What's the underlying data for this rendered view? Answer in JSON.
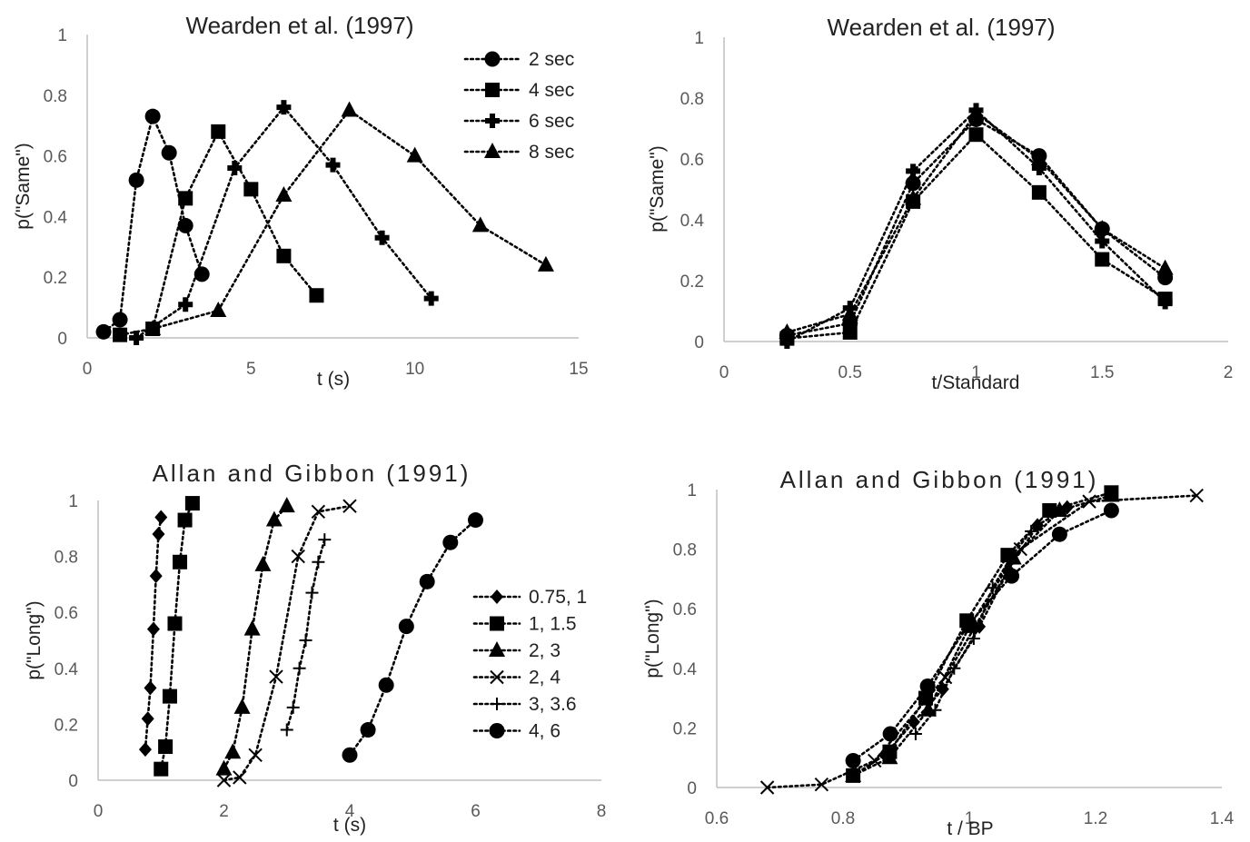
{
  "chart_data": [
    {
      "type": "line",
      "title": "Wearden et al. (1997)",
      "xlabel": "t (s)",
      "ylabel": "p(\"Same\")",
      "xlim": [
        0,
        15
      ],
      "ylim": [
        0,
        1
      ],
      "xticks": [
        "0",
        "5",
        "10",
        "15"
      ],
      "yticks": [
        "0",
        "0.2",
        "0.4",
        "0.6",
        "0.8",
        "1"
      ],
      "grid": false,
      "legend": "top-right",
      "series": [
        {
          "name": "2 sec",
          "marker": "circle",
          "x": [
            0.5,
            1.0,
            1.5,
            2.0,
            2.5,
            3.0,
            3.5
          ],
          "y": [
            0.02,
            0.06,
            0.52,
            0.73,
            0.61,
            0.37,
            0.21
          ]
        },
        {
          "name": "4 sec",
          "marker": "square",
          "x": [
            1.0,
            2.0,
            3.0,
            4.0,
            5.0,
            6.0,
            7.0
          ],
          "y": [
            0.01,
            0.03,
            0.46,
            0.68,
            0.49,
            0.27,
            0.14
          ]
        },
        {
          "name": "6 sec",
          "marker": "cross",
          "x": [
            1.5,
            3.0,
            4.5,
            6.0,
            7.5,
            9.0,
            10.5
          ],
          "y": [
            0.0,
            0.11,
            0.56,
            0.76,
            0.57,
            0.33,
            0.13
          ]
        },
        {
          "name": "8 sec",
          "marker": "triangle",
          "x": [
            2.0,
            4.0,
            6.0,
            8.0,
            10.0,
            12.0,
            14.0
          ],
          "y": [
            0.03,
            0.09,
            0.47,
            0.75,
            0.6,
            0.37,
            0.24
          ]
        }
      ]
    },
    {
      "type": "line",
      "title": "Wearden et al. (1997)",
      "xlabel": "t/Standard",
      "ylabel": "p(\"Same\")",
      "xlim": [
        0,
        2
      ],
      "ylim": [
        0,
        1
      ],
      "xticks": [
        "0",
        "0.5",
        "1",
        "1.5",
        "2"
      ],
      "yticks": [
        "0",
        "0.2",
        "0.4",
        "0.6",
        "0.8",
        "1"
      ],
      "grid": false,
      "series": [
        {
          "marker": "circle",
          "x": [
            0.25,
            0.5,
            0.75,
            1.0,
            1.25,
            1.5,
            1.75
          ],
          "y": [
            0.02,
            0.06,
            0.52,
            0.73,
            0.61,
            0.37,
            0.21
          ]
        },
        {
          "marker": "square",
          "x": [
            0.25,
            0.5,
            0.75,
            1.0,
            1.25,
            1.5,
            1.75
          ],
          "y": [
            0.01,
            0.03,
            0.46,
            0.68,
            0.49,
            0.27,
            0.14
          ]
        },
        {
          "marker": "cross",
          "x": [
            0.25,
            0.5,
            0.75,
            1.0,
            1.25,
            1.5,
            1.75
          ],
          "y": [
            0.0,
            0.11,
            0.56,
            0.76,
            0.57,
            0.33,
            0.13
          ]
        },
        {
          "marker": "triangle",
          "x": [
            0.25,
            0.5,
            0.75,
            1.0,
            1.25,
            1.5,
            1.75
          ],
          "y": [
            0.03,
            0.09,
            0.47,
            0.75,
            0.6,
            0.37,
            0.24
          ]
        }
      ]
    },
    {
      "type": "line",
      "title": "Allan and Gibbon (1991)",
      "xlabel": "t (s)",
      "ylabel": "p(\"Long\")",
      "xlim": [
        0,
        8
      ],
      "ylim": [
        0,
        1
      ],
      "xticks": [
        "0",
        "2",
        "4",
        "6",
        "8"
      ],
      "yticks": [
        "0",
        "0.2",
        "0.4",
        "0.6",
        "0.8",
        "1"
      ],
      "grid": false,
      "legend": "right",
      "series": [
        {
          "name": "0.75, 1",
          "marker": "diamond",
          "x": [
            0.75,
            0.79,
            0.83,
            0.88,
            0.92,
            0.96,
            1.0
          ],
          "y": [
            0.11,
            0.22,
            0.33,
            0.54,
            0.73,
            0.88,
            0.94
          ]
        },
        {
          "name": "1, 1.5",
          "marker": "square",
          "x": [
            1.0,
            1.07,
            1.14,
            1.22,
            1.3,
            1.38,
            1.5
          ],
          "y": [
            0.04,
            0.12,
            0.3,
            0.56,
            0.78,
            0.93,
            0.99
          ]
        },
        {
          "name": "2, 3",
          "marker": "triangle",
          "x": [
            2.0,
            2.14,
            2.29,
            2.45,
            2.62,
            2.8,
            3.0
          ],
          "y": [
            0.04,
            0.1,
            0.26,
            0.54,
            0.77,
            0.93,
            0.98
          ]
        },
        {
          "name": "2, 4",
          "marker": "x",
          "x": [
            2.0,
            2.25,
            2.5,
            2.83,
            3.18,
            3.5,
            4.0
          ],
          "y": [
            0.0,
            0.01,
            0.09,
            0.37,
            0.8,
            0.96,
            0.98
          ]
        },
        {
          "name": "3, 3.6",
          "marker": "plus",
          "x": [
            3.0,
            3.1,
            3.2,
            3.3,
            3.4,
            3.5,
            3.6
          ],
          "y": [
            0.18,
            0.26,
            0.4,
            0.5,
            0.67,
            0.78,
            0.86
          ]
        },
        {
          "name": "4, 6",
          "marker": "circle",
          "x": [
            4.0,
            4.29,
            4.58,
            4.9,
            5.23,
            5.6,
            6.0
          ],
          "y": [
            0.09,
            0.18,
            0.34,
            0.55,
            0.71,
            0.85,
            0.93
          ]
        }
      ]
    },
    {
      "type": "line",
      "title": "Allan and Gibbon (1991)",
      "xlabel": "t / BP",
      "ylabel": "p(\"Long\")",
      "xlim": [
        0.6,
        1.4
      ],
      "ylim": [
        0,
        1
      ],
      "xticks": [
        "0.6",
        "0.8",
        "1",
        "1.2",
        "1.4"
      ],
      "yticks": [
        "0",
        "0.2",
        "0.4",
        "0.6",
        "0.8",
        "1"
      ],
      "grid": false,
      "series": [
        {
          "marker": "diamond",
          "x": [
            0.866,
            0.912,
            0.958,
            1.016,
            1.062,
            1.108,
            1.155
          ],
          "y": [
            0.11,
            0.22,
            0.33,
            0.54,
            0.73,
            0.88,
            0.94
          ]
        },
        {
          "marker": "square",
          "x": [
            0.816,
            0.874,
            0.931,
            0.996,
            1.061,
            1.127,
            1.225
          ],
          "y": [
            0.04,
            0.12,
            0.3,
            0.56,
            0.78,
            0.93,
            0.99
          ]
        },
        {
          "marker": "triangle",
          "x": [
            0.816,
            0.874,
            0.935,
            1.0,
            1.07,
            1.143,
            1.225
          ],
          "y": [
            0.04,
            0.1,
            0.26,
            0.54,
            0.77,
            0.93,
            0.98
          ]
        },
        {
          "marker": "x",
          "x": [
            0.68,
            0.766,
            0.85,
            0.962,
            1.081,
            1.19,
            1.36
          ],
          "y": [
            0.0,
            0.01,
            0.09,
            0.37,
            0.8,
            0.96,
            0.98
          ]
        },
        {
          "marker": "plus",
          "x": [
            0.915,
            0.946,
            0.976,
            1.007,
            1.037,
            1.068,
            1.098
          ],
          "y": [
            0.18,
            0.26,
            0.4,
            0.5,
            0.67,
            0.78,
            0.86
          ]
        },
        {
          "marker": "circle",
          "x": [
            0.816,
            0.875,
            0.934,
            1.0,
            1.067,
            1.143,
            1.225
          ],
          "y": [
            0.09,
            0.18,
            0.34,
            0.55,
            0.71,
            0.85,
            0.93
          ]
        }
      ]
    }
  ]
}
